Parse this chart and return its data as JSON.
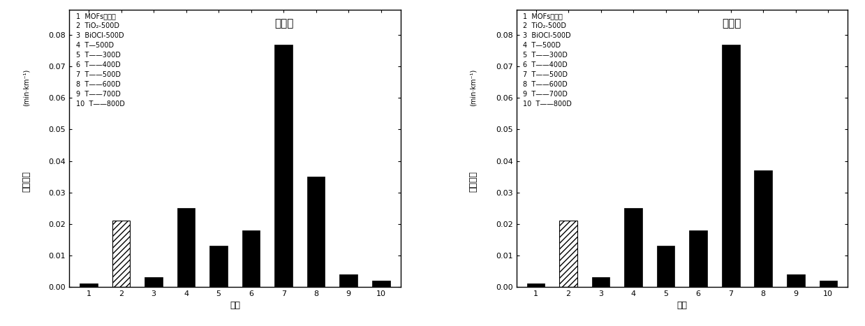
{
  "left_values": [
    0.001,
    0.021,
    0.003,
    0.025,
    0.013,
    0.018,
    0.077,
    0.035,
    0.004,
    0.002
  ],
  "right_values": [
    0.001,
    0.021,
    0.003,
    0.025,
    0.013,
    0.018,
    0.077,
    0.037,
    0.004,
    0.002
  ],
  "categories": [
    "1",
    "2",
    "3",
    "4",
    "5",
    "6",
    "7",
    "8",
    "9",
    "10"
  ],
  "ylim": [
    0,
    0.088
  ],
  "yticks": [
    0.0,
    0.01,
    0.02,
    0.03,
    0.04,
    0.05,
    0.06,
    0.07,
    0.08
  ],
  "ylabel_cn": "反应速率",
  "ylabel_unit": "(min·km⁻¹)",
  "xlabel": "样品",
  "left_title": "太阳光",
  "right_title": "可见光",
  "legend_lines": [
    "1  MOFs碳材料",
    "2  TiO₂-500D",
    "3  BiOCl-500D",
    "4  T—500D",
    "5  T——300D",
    "6  T——400D",
    "7  T——500D",
    "8  T——600D",
    "9  T——700D",
    "10  T——800D"
  ],
  "bar_color": "#000000",
  "hatch_bar_index": 1,
  "hatch_pattern": "////",
  "bg_color": "#ffffff",
  "bar_width": 0.55,
  "font_size": 8,
  "legend_font_size": 7,
  "title_font_size": 11,
  "ylabel_fontsize": 9,
  "unit_fontsize": 7
}
